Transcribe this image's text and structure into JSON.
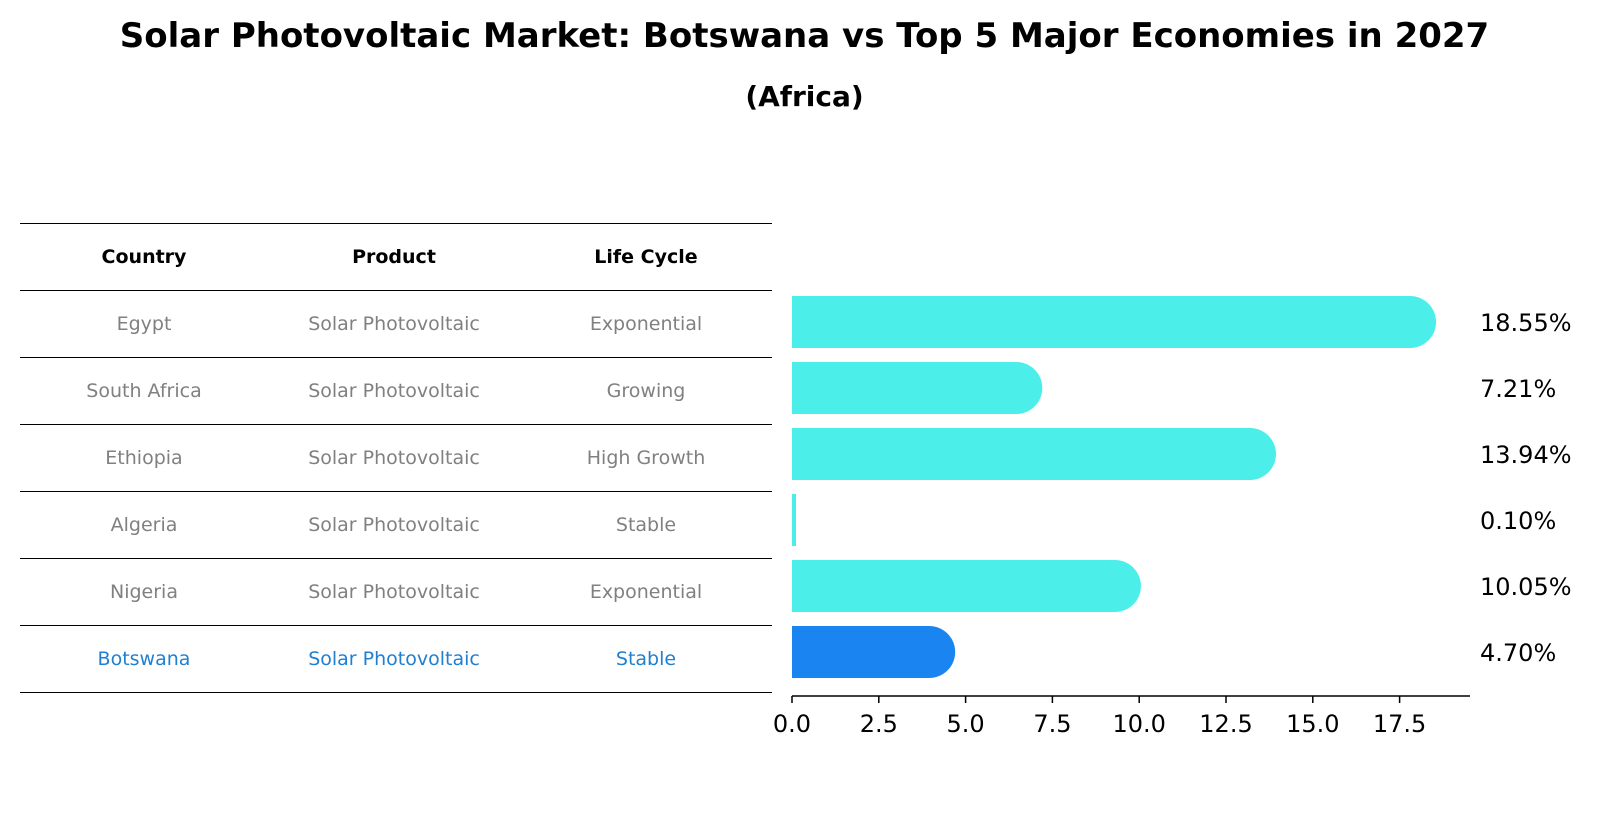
{
  "title": "Solar Photovoltaic Market: Botswana vs Top 5 Major Economies in 2027",
  "subtitle": "(Africa)",
  "table": {
    "headers": [
      "Country",
      "Product",
      "Life Cycle"
    ],
    "rows": [
      {
        "country": "Egypt",
        "product": "Solar Photovoltaic",
        "life_cycle": "Exponential"
      },
      {
        "country": "South Africa",
        "product": "Solar Photovoltaic",
        "life_cycle": "Growing"
      },
      {
        "country": "Ethiopia",
        "product": "Solar Photovoltaic",
        "life_cycle": "High Growth"
      },
      {
        "country": "Algeria",
        "product": "Solar Photovoltaic",
        "life_cycle": "Stable"
      },
      {
        "country": "Nigeria",
        "product": "Solar Photovoltaic",
        "life_cycle": "Exponential"
      },
      {
        "country": "Botswana",
        "product": "Solar Photovoltaic",
        "life_cycle": "Stable"
      }
    ]
  },
  "chart_data": {
    "type": "bar",
    "orientation": "horizontal",
    "categories": [
      "Egypt",
      "South Africa",
      "Ethiopia",
      "Algeria",
      "Nigeria",
      "Botswana"
    ],
    "values": [
      18.55,
      7.21,
      13.94,
      0.1,
      10.05,
      4.7
    ],
    "value_labels": [
      "18.55%",
      "7.21%",
      "13.94%",
      "0.10%",
      "10.05%",
      "4.70%"
    ],
    "highlight": "Botswana",
    "xlim": [
      0,
      19.5
    ],
    "xticks": [
      0.0,
      2.5,
      5.0,
      7.5,
      10.0,
      12.5,
      15.0,
      17.5
    ],
    "xtick_labels": [
      "0.0",
      "2.5",
      "5.0",
      "7.5",
      "10.0",
      "12.5",
      "15.0",
      "17.5"
    ],
    "colors": {
      "default": "#4ceeea",
      "highlight": "#1a84f0"
    }
  }
}
